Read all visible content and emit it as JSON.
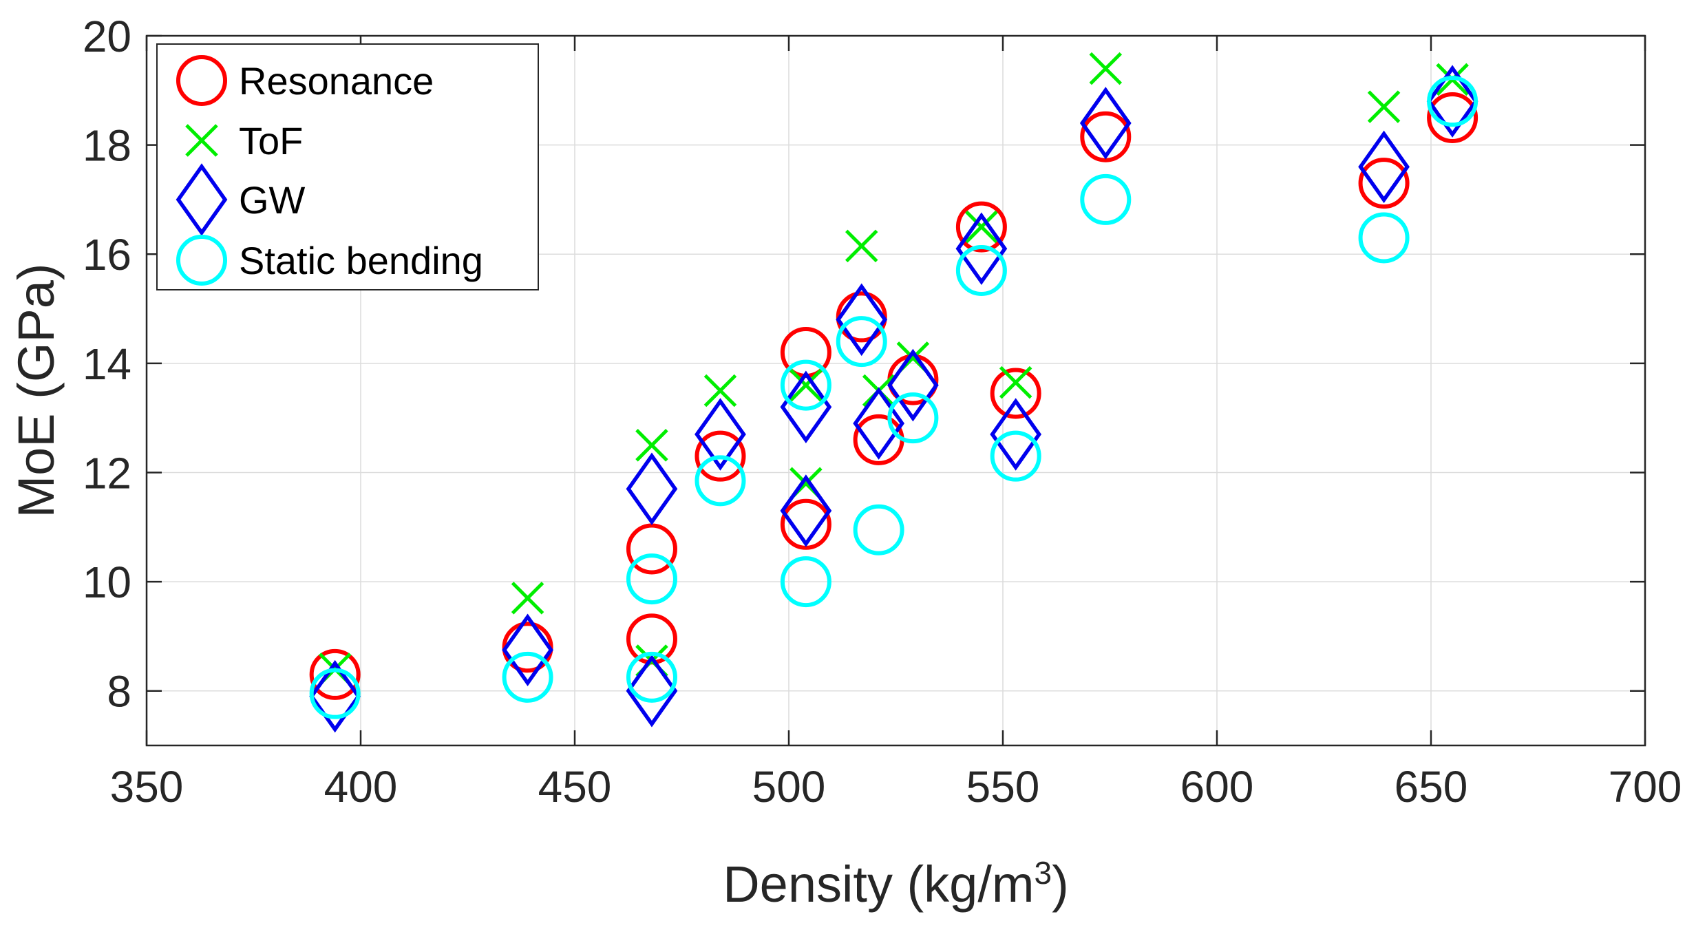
{
  "chart_data": {
    "type": "scatter",
    "title": "",
    "xlabel": "Density (kg/m",
    "xlabel_sup": "3",
    "xlabel_end": ")",
    "ylabel": "MoE (GPa)",
    "xlim": [
      350,
      700
    ],
    "ylim": [
      7,
      20
    ],
    "xticks": [
      350,
      400,
      450,
      500,
      550,
      600,
      650,
      700
    ],
    "yticks": [
      8,
      10,
      12,
      14,
      16,
      18,
      20
    ],
    "grid": true,
    "legend_position": "top-left",
    "series": [
      {
        "name": "Resonance",
        "marker": "circle",
        "color": "#ff0000",
        "points": [
          [
            394,
            8.3
          ],
          [
            439,
            8.8
          ],
          [
            468,
            10.6
          ],
          [
            468,
            8.95
          ],
          [
            484,
            12.3
          ],
          [
            504,
            14.2
          ],
          [
            504,
            11.05
          ],
          [
            517,
            14.85
          ],
          [
            521,
            12.6
          ],
          [
            529,
            13.7
          ],
          [
            545,
            16.5
          ],
          [
            553,
            13.45
          ],
          [
            574,
            18.15
          ],
          [
            639,
            17.3
          ],
          [
            655,
            18.5
          ]
        ]
      },
      {
        "name": "ToF",
        "marker": "x",
        "color": "#00ee00",
        "points": [
          [
            394,
            8.4
          ],
          [
            439,
            9.7
          ],
          [
            468,
            12.5
          ],
          [
            468,
            8.55
          ],
          [
            484,
            13.5
          ],
          [
            504,
            13.6
          ],
          [
            504,
            11.8
          ],
          [
            517,
            16.15
          ],
          [
            521,
            13.5
          ],
          [
            529,
            14.1
          ],
          [
            545,
            16.5
          ],
          [
            553,
            13.65
          ],
          [
            574,
            19.4
          ],
          [
            639,
            18.7
          ],
          [
            655,
            19.2
          ]
        ]
      },
      {
        "name": "GW",
        "marker": "diamond",
        "color": "#0000ee",
        "points": [
          [
            394,
            7.9
          ],
          [
            439,
            8.75
          ],
          [
            468,
            11.7
          ],
          [
            468,
            8.0
          ],
          [
            484,
            12.7
          ],
          [
            504,
            13.2
          ],
          [
            504,
            11.3
          ],
          [
            517,
            14.8
          ],
          [
            521,
            12.9
          ],
          [
            529,
            13.6
          ],
          [
            545,
            16.1
          ],
          [
            553,
            12.7
          ],
          [
            574,
            18.4
          ],
          [
            639,
            17.6
          ],
          [
            655,
            18.8
          ]
        ]
      },
      {
        "name": "Static bending",
        "marker": "circle",
        "color": "#00ffff",
        "points": [
          [
            394,
            7.95
          ],
          [
            439,
            8.25
          ],
          [
            468,
            10.05
          ],
          [
            468,
            8.25
          ],
          [
            484,
            11.85
          ],
          [
            504,
            13.6
          ],
          [
            504,
            10.0
          ],
          [
            517,
            14.4
          ],
          [
            521,
            10.95
          ],
          [
            529,
            13.0
          ],
          [
            545,
            15.7
          ],
          [
            553,
            12.3
          ],
          [
            574,
            17.0
          ],
          [
            639,
            16.3
          ],
          [
            655,
            18.8
          ]
        ]
      }
    ]
  }
}
